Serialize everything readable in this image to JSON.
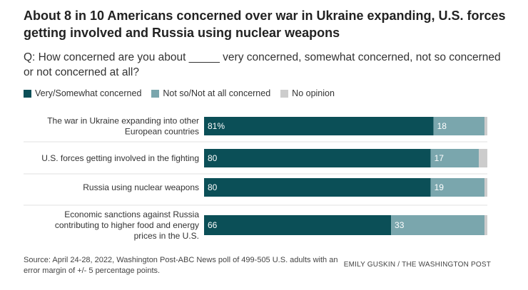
{
  "title": "About 8 in 10 Americans concerned over war in Ukraine expanding, U.S. forces getting involved and Russia using nuclear weapons",
  "subtitle": "Q: How concerned are you about _____ very concerned, somewhat concerned, not so concerned or not concerned at all?",
  "source": "Source: April 24-28, 2022, Washington Post-ABC News poll of 499-505 U.S. adults with an error margin of +/- 5 percentage points.",
  "credit": "EMILY GUSKIN / THE WASHINGTON POST",
  "colors": {
    "very_somewhat": "#0b4f57",
    "not_so_not_at_all": "#7aa6ad",
    "no_opinion": "#cccccc"
  },
  "chart_data": {
    "type": "bar",
    "orientation": "horizontal",
    "stacked": true,
    "legend_placement": "top-left",
    "categories": [
      "The war in Ukraine expanding into other European countries",
      "U.S. forces getting involved in the fighting",
      "Russia using nuclear weapons",
      "Economic sanctions against Russia contributing to higher food and energy prices in the U.S."
    ],
    "category_lines": [
      [
        "The war in Ukraine expanding into other",
        "European countries"
      ],
      [
        "U.S. forces getting involved in the fighting"
      ],
      [
        "Russia using nuclear weapons"
      ],
      [
        "Economic sanctions against Russia",
        "contributing to higher food and energy",
        "prices in the U.S."
      ]
    ],
    "series": [
      {
        "name": "Very/Somewhat concerned",
        "values": [
          81,
          80,
          80,
          66
        ],
        "labels": [
          "81%",
          "80",
          "80",
          "66"
        ]
      },
      {
        "name": "Not so/Not at all concerned",
        "values": [
          18,
          17,
          19,
          33
        ],
        "labels": [
          "18",
          "17",
          "19",
          "33"
        ]
      },
      {
        "name": "No opinion",
        "values": [
          1,
          3,
          1,
          1
        ],
        "labels": [
          "",
          "",
          "",
          ""
        ]
      }
    ],
    "xlim": [
      0,
      100
    ]
  }
}
